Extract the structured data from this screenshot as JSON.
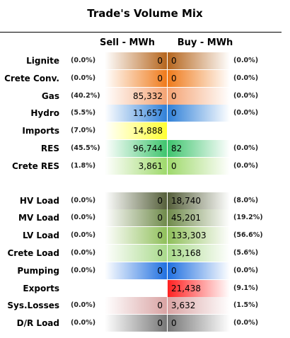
{
  "title": "Trade's Volume Mix",
  "headers": {
    "sell": "Sell - MWh",
    "buy": "Buy - MWh"
  },
  "chart_data": {
    "type": "table",
    "title": "Trade's Volume Mix",
    "columns": [
      "Sell - MWh",
      "Buy - MWh"
    ],
    "groups": [
      {
        "rows": [
          {
            "label": "Lignite",
            "sell": "0",
            "sell_pct": "(0.0%)",
            "buy": "0",
            "buy_pct": "(0.0%)",
            "color": "#b5651d",
            "sell_fill": 1.0,
            "buy_fill": 1.0
          },
          {
            "label": "Crete Conv.",
            "sell": "0",
            "sell_pct": "(0.0%)",
            "buy": "0",
            "buy_pct": "(0.0%)",
            "color": "#ef7a1a",
            "sell_fill": 1.0,
            "buy_fill": 1.0
          },
          {
            "label": "Gas",
            "sell": "85,332",
            "sell_pct": "(40.2%)",
            "buy": "0",
            "buy_pct": "(0.0%)",
            "color": "#f4a373",
            "sell_fill": 1.0,
            "buy_fill": 1.0
          },
          {
            "label": "Hydro",
            "sell": "11,657",
            "sell_pct": "(5.5%)",
            "buy": "0",
            "buy_pct": "(0.0%)",
            "color": "#2f80d8",
            "sell_fill": 1.0,
            "buy_fill": 1.0
          },
          {
            "label": "Imports",
            "sell": "14,888",
            "sell_pct": "(7.0%)",
            "buy": "",
            "buy_pct": "",
            "color": "#ffff33",
            "sell_fill": 1.0,
            "buy_fill": 0.0
          },
          {
            "label": "RES",
            "sell": "96,744",
            "sell_pct": "(45.5%)",
            "buy": "82",
            "buy_pct": "(0.0%)",
            "color": "#3ec46d",
            "sell_fill": 1.0,
            "buy_fill": 1.0
          },
          {
            "label": "Crete RES",
            "sell": "3,861",
            "sell_pct": "(1.8%)",
            "buy": "0",
            "buy_pct": "(0.0%)",
            "color": "#9ed96b",
            "sell_fill": 1.0,
            "buy_fill": 1.0
          }
        ]
      },
      {
        "rows": [
          {
            "label": "HV Load",
            "sell": "0",
            "sell_pct": "(0.0%)",
            "buy": "18,740",
            "buy_pct": "(8.0%)",
            "color": "#555f3a",
            "sell_fill": 1.0,
            "buy_fill": 1.0
          },
          {
            "label": "MV Load",
            "sell": "0",
            "sell_pct": "(0.0%)",
            "buy": "45,201",
            "buy_pct": "(19.2%)",
            "color": "#6f8a4a",
            "sell_fill": 1.0,
            "buy_fill": 1.0
          },
          {
            "label": "LV Load",
            "sell": "0",
            "sell_pct": "(0.0%)",
            "buy": "133,303",
            "buy_pct": "(56.6%)",
            "color": "#8fbf5a",
            "sell_fill": 1.0,
            "buy_fill": 1.0
          },
          {
            "label": "Crete Load",
            "sell": "0",
            "sell_pct": "(0.0%)",
            "buy": "13,168",
            "buy_pct": "(5.6%)",
            "color": "#a8d98a",
            "sell_fill": 1.0,
            "buy_fill": 1.0
          },
          {
            "label": "Pumping",
            "sell": "0",
            "sell_pct": "(0.0%)",
            "buy": "0",
            "buy_pct": "(0.0%)",
            "color": "#1f6fe0",
            "sell_fill": 1.0,
            "buy_fill": 1.0
          },
          {
            "label": "Exports",
            "sell": "",
            "sell_pct": "",
            "buy": "21,438",
            "buy_pct": "(9.1%)",
            "color": "#ff2020",
            "sell_fill": 0.0,
            "buy_fill": 1.0
          },
          {
            "label": "Sys.Losses",
            "sell": "0",
            "sell_pct": "(0.0%)",
            "buy": "3,632",
            "buy_pct": "(1.5%)",
            "color": "#d9a3a3",
            "sell_fill": 1.0,
            "buy_fill": 1.0
          },
          {
            "label": "D/R Load",
            "sell": "0",
            "sell_pct": "(0.0%)",
            "buy": "0",
            "buy_pct": "(0.0%)",
            "color": "#777777",
            "sell_fill": 1.0,
            "buy_fill": 1.0
          }
        ]
      }
    ]
  }
}
